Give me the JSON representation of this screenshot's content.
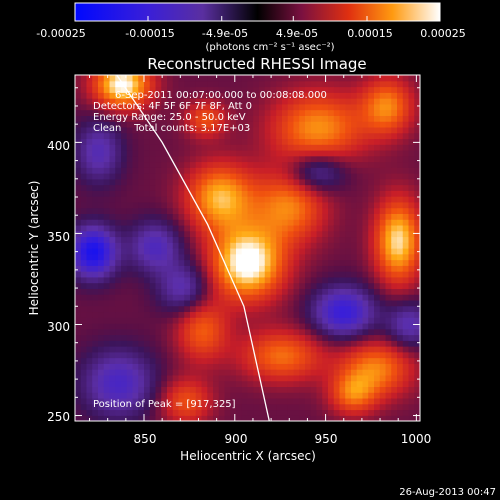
{
  "colorbar": {
    "tick_labels": [
      "-0.00025",
      "-0.00015",
      "-4.9e-05",
      "4.9e-05",
      "0.00015",
      "0.00025"
    ],
    "tick_values": [
      -0.00025,
      -0.00015,
      -4.9e-05,
      4.9e-05,
      0.00015,
      0.00025
    ],
    "range": [
      -0.00025,
      0.00025
    ],
    "units": "(photons cm⁻² s⁻¹ asec⁻²)"
  },
  "chart_data": {
    "type": "heatmap",
    "title": "Reconstructed RHESSI Image",
    "xlabel": "Heliocentric X (arcsec)",
    "ylabel": "Heliocentric Y (arcsec)",
    "xlim": [
      812,
      1002
    ],
    "ylim": [
      247,
      437
    ],
    "x_ticks": [
      850,
      900,
      950,
      1000
    ],
    "y_ticks": [
      250,
      300,
      350,
      400
    ],
    "annotations": {
      "time_range": "6-Sep-2011 00:07:00.000 to 00:08:08.000",
      "detectors": "Detectors: 4F 5F 6F 7F 8F, Att 0",
      "energy": "Energy Range: 25.0 - 50.0 keV",
      "method": "Clean    Total counts: 3.17E+03",
      "peak": "Position of Peak = [917,325]"
    },
    "peak_position": [
      917,
      325
    ],
    "limb_curve": [
      [
        835,
        437
      ],
      [
        860,
        400
      ],
      [
        885,
        355
      ],
      [
        905,
        310
      ],
      [
        919,
        247
      ]
    ],
    "blobs": [
      {
        "x": 907,
        "y": 334,
        "sx": 14,
        "sy": 14,
        "a": 1.0
      },
      {
        "x": 892,
        "y": 370,
        "sx": 13,
        "sy": 13,
        "a": 0.75
      },
      {
        "x": 838,
        "y": 432,
        "sx": 11,
        "sy": 9,
        "a": 0.95
      },
      {
        "x": 990,
        "y": 346,
        "sx": 9,
        "sy": 16,
        "a": 0.85
      },
      {
        "x": 946,
        "y": 408,
        "sx": 18,
        "sy": 14,
        "a": 0.65
      },
      {
        "x": 984,
        "y": 420,
        "sx": 10,
        "sy": 11,
        "a": 0.6
      },
      {
        "x": 930,
        "y": 365,
        "sx": 14,
        "sy": 14,
        "a": 0.6
      },
      {
        "x": 882,
        "y": 297,
        "sx": 10,
        "sy": 12,
        "a": 0.5
      },
      {
        "x": 978,
        "y": 276,
        "sx": 14,
        "sy": 11,
        "a": 0.6
      },
      {
        "x": 926,
        "y": 283,
        "sx": 16,
        "sy": 10,
        "a": 0.55
      },
      {
        "x": 965,
        "y": 262,
        "sx": 9,
        "sy": 8,
        "a": 0.5
      },
      {
        "x": 873,
        "y": 258,
        "sx": 10,
        "sy": 9,
        "a": 0.45
      },
      {
        "x": 884,
        "y": 413,
        "sx": 8,
        "sy": 7,
        "a": 0.45
      },
      {
        "x": 856,
        "y": 343,
        "sx": 10,
        "sy": 10,
        "a": -0.5
      },
      {
        "x": 822,
        "y": 340,
        "sx": 9,
        "sy": 10,
        "a": -0.9
      },
      {
        "x": 836,
        "y": 268,
        "sx": 14,
        "sy": 13,
        "a": -0.55
      },
      {
        "x": 960,
        "y": 307,
        "sx": 12,
        "sy": 10,
        "a": -0.7
      },
      {
        "x": 945,
        "y": 384,
        "sx": 11,
        "sy": 8,
        "a": -0.5
      },
      {
        "x": 825,
        "y": 395,
        "sx": 9,
        "sy": 12,
        "a": -0.45
      },
      {
        "x": 872,
        "y": 320,
        "sx": 10,
        "sy": 10,
        "a": -0.45
      },
      {
        "x": 996,
        "y": 300,
        "sx": 9,
        "sy": 9,
        "a": -0.45
      }
    ]
  },
  "footer": {
    "date": "26-Aug-2013 00:47"
  }
}
